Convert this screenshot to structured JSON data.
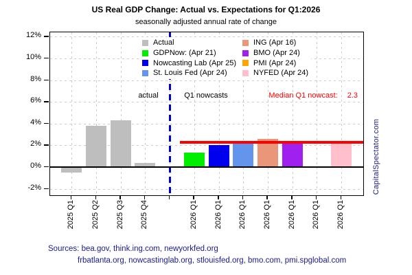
{
  "watermark": "CapitalSpectator.com",
  "legend": {
    "columns": [
      [
        {
          "label": "Actual",
          "color": "#BEBEBE"
        },
        {
          "label": "GDPNow: (Apr 21)",
          "color": "#00EE00"
        },
        {
          "label": "Nowcasting Lab (Apr 25)",
          "color": "#0000EE"
        },
        {
          "label": "St. Louis Fed (Apr 24)",
          "color": "#6495ED"
        }
      ],
      [
        {
          "label": "ING (Apr 16)",
          "color": "#E9967A"
        },
        {
          "label": "BMO (Apr 24)",
          "color": "#A020F0"
        },
        {
          "label": "PMI (Apr 24)",
          "color": "#FFA500"
        },
        {
          "label": "NYFED (Apr 24)",
          "color": "#FFC0CB"
        }
      ]
    ]
  },
  "sources": {
    "line1": "Sources: bea.gov, think.ing.com, newyorkfed.org",
    "line2": "frbatlanta.org, nowcastinglab.org, stlouisfed.org, bmo.com, pmi.spglobal.com"
  },
  "chart_data": {
    "type": "bar",
    "title": "US Real GDP Change: Actual vs. Expectations for Q1:2026",
    "subtitle": "seasonally adjusted annual rate of change",
    "xlabel": "",
    "ylabel": "",
    "ylim": [
      -2.6,
      12.4
    ],
    "yticks": [
      -2,
      0,
      2,
      4,
      6,
      8,
      10,
      12
    ],
    "ytick_suffix": "%",
    "grid": true,
    "legend_position": "top-inside",
    "categories": [
      "2025 Q1",
      "2025 Q2",
      "2025 Q3",
      "2025 Q4",
      "",
      "2026 Q1",
      "2026 Q1",
      "2026 Q1",
      "2026 Q1",
      "2026 Q1",
      "2026 Q1",
      "2026 Q1"
    ],
    "bars": [
      {
        "slot": 0,
        "category": "2025 Q1",
        "series": "Actual",
        "value": -0.5,
        "color": "#BEBEBE"
      },
      {
        "slot": 1,
        "category": "2025 Q2",
        "series": "Actual",
        "value": 3.8,
        "color": "#BEBEBE"
      },
      {
        "slot": 2,
        "category": "2025 Q3",
        "series": "Actual",
        "value": 4.3,
        "color": "#BEBEBE"
      },
      {
        "slot": 3,
        "category": "2025 Q4",
        "series": "Actual",
        "value": 0.4,
        "color": "#BEBEBE"
      },
      {
        "slot": 5,
        "category": "2026 Q1",
        "series": "GDPNow: (Apr 21)",
        "value": 1.3,
        "color": "#00EE00"
      },
      {
        "slot": 6,
        "category": "2026 Q1",
        "series": "Nowcasting Lab (Apr 25)",
        "value": 2.0,
        "color": "#0000EE"
      },
      {
        "slot": 7,
        "category": "2026 Q1",
        "series": "St. Louis Fed (Apr 24)",
        "value": 2.4,
        "color": "#6495ED"
      },
      {
        "slot": 8,
        "category": "2026 Q1",
        "series": "ING (Apr 16)",
        "value": 2.6,
        "color": "#E9967A"
      },
      {
        "slot": 9,
        "category": "2026 Q1",
        "series": "BMO (Apr 24)",
        "value": 2.3,
        "color": "#A020F0"
      },
      {
        "slot": 10,
        "category": "2026 Q1",
        "series": "PMI (Apr 24)",
        "value": -0.1,
        "color": "#FFA500"
      },
      {
        "slot": 11,
        "category": "2026 Q1",
        "series": "NYFED (Apr 24)",
        "value": 2.3,
        "color": "#FFC0CB"
      }
    ],
    "median_line": {
      "value": 2.3,
      "color": "#FF0000"
    },
    "separator_line": {
      "slot": 4,
      "color": "#0000CD",
      "style": "dashed"
    },
    "annotations": {
      "actual": "actual",
      "nowcasts": "Q1 nowcasts",
      "median_label": "Median Q1 nowcast:",
      "median_value": "2.3"
    }
  },
  "colors": {
    "median": "#FF0000",
    "separator": "#0000CD",
    "grid": "#CCCCCC",
    "text_accent": "#1A1A8C"
  }
}
